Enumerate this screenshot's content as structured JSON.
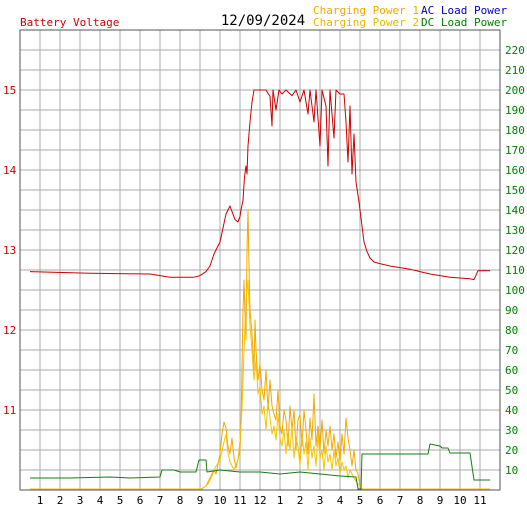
{
  "header": {
    "left_title": "Battery Voltage",
    "date": "12/09/2024",
    "legend": [
      {
        "label": "Charging Power 1",
        "color": "#f2a900"
      },
      {
        "label": "Charging Power 2",
        "color": "#e6b800"
      },
      {
        "label": "AC Load Power",
        "color": "#0000cc"
      },
      {
        "label": "DC Load Power",
        "color": "#008000"
      }
    ]
  },
  "colors": {
    "voltage": "#cc0000",
    "charging1": "#f2a900",
    "charging2": "#f5c400",
    "dc_load": "#1a7a1a",
    "right_axis": "#008000",
    "left_axis": "#cc0000",
    "grid": "#aaaaaa"
  },
  "chart_data": {
    "type": "line",
    "x_ticks": [
      "1",
      "2",
      "3",
      "4",
      "5",
      "6",
      "7",
      "8",
      "9",
      "10",
      "11",
      "12",
      "1",
      "2",
      "3",
      "4",
      "5",
      "6",
      "7",
      "8",
      "9",
      "10",
      "11"
    ],
    "left_axis": {
      "ticks": [
        "11",
        "12",
        "13",
        "14",
        "15"
      ],
      "range": [
        10.0,
        15.75
      ]
    },
    "right_axis": {
      "ticks": [
        "10",
        "20",
        "30",
        "40",
        "50",
        "60",
        "70",
        "80",
        "90",
        "100",
        "110",
        "120",
        "130",
        "140",
        "150",
        "160",
        "170",
        "180",
        "190",
        "200",
        "210",
        "220"
      ],
      "range": [
        0,
        230
      ]
    },
    "series": [
      {
        "key": "voltage",
        "axis": "left",
        "points": [
          [
            0,
            12.73
          ],
          [
            3,
            12.71
          ],
          [
            6,
            12.7
          ],
          [
            7,
            12.66
          ],
          [
            8.2,
            12.66
          ],
          [
            8.5,
            12.68
          ],
          [
            8.8,
            12.73
          ],
          [
            9.0,
            12.8
          ],
          [
            9.2,
            12.95
          ],
          [
            9.5,
            13.1
          ],
          [
            9.8,
            13.45
          ],
          [
            10.0,
            13.55
          ],
          [
            10.1,
            13.48
          ],
          [
            10.25,
            13.38
          ],
          [
            10.4,
            13.35
          ],
          [
            10.5,
            13.42
          ],
          [
            10.55,
            13.5
          ],
          [
            10.65,
            13.62
          ],
          [
            10.72,
            13.9
          ],
          [
            10.8,
            14.05
          ],
          [
            10.85,
            13.95
          ],
          [
            10.9,
            14.3
          ],
          [
            11.0,
            14.6
          ],
          [
            11.1,
            14.85
          ],
          [
            11.2,
            15.0
          ],
          [
            11.6,
            15.0
          ],
          [
            11.8,
            15.0
          ],
          [
            12.0,
            14.92
          ],
          [
            12.1,
            14.55
          ],
          [
            12.15,
            15.0
          ],
          [
            12.3,
            14.75
          ],
          [
            12.45,
            15.0
          ],
          [
            12.6,
            14.95
          ],
          [
            12.8,
            15.0
          ],
          [
            13.1,
            14.93
          ],
          [
            13.3,
            15.0
          ],
          [
            13.5,
            14.85
          ],
          [
            13.7,
            15.0
          ],
          [
            13.9,
            14.7
          ],
          [
            14.0,
            15.0
          ],
          [
            14.2,
            14.6
          ],
          [
            14.3,
            15.0
          ],
          [
            14.5,
            14.3
          ],
          [
            14.6,
            15.0
          ],
          [
            14.8,
            14.8
          ],
          [
            14.9,
            14.05
          ],
          [
            15.0,
            15.0
          ],
          [
            15.2,
            14.4
          ],
          [
            15.3,
            15.0
          ],
          [
            15.5,
            14.95
          ],
          [
            15.7,
            14.95
          ],
          [
            15.8,
            14.6
          ],
          [
            15.9,
            14.1
          ],
          [
            16.0,
            14.8
          ],
          [
            16.1,
            13.95
          ],
          [
            16.2,
            14.45
          ],
          [
            16.3,
            13.85
          ],
          [
            16.45,
            13.6
          ],
          [
            16.6,
            13.3
          ],
          [
            16.7,
            13.1
          ],
          [
            16.85,
            12.98
          ],
          [
            17.0,
            12.9
          ],
          [
            17.2,
            12.85
          ],
          [
            17.5,
            12.83
          ],
          [
            18.0,
            12.8
          ],
          [
            18.5,
            12.78
          ],
          [
            19.0,
            12.76
          ],
          [
            19.5,
            12.73
          ],
          [
            20.0,
            12.7
          ],
          [
            20.5,
            12.68
          ],
          [
            21.0,
            12.66
          ],
          [
            21.5,
            12.65
          ],
          [
            22.0,
            12.64
          ],
          [
            22.2,
            12.63
          ],
          [
            22.4,
            12.74
          ],
          [
            23,
            12.74
          ]
        ]
      },
      {
        "key": "charging1",
        "axis": "right",
        "points": [
          [
            0,
            0
          ],
          [
            8.55,
            0
          ],
          [
            8.8,
            2
          ],
          [
            9.0,
            6
          ],
          [
            9.2,
            10
          ],
          [
            9.3,
            8
          ],
          [
            9.5,
            18
          ],
          [
            9.6,
            28
          ],
          [
            9.7,
            34
          ],
          [
            9.8,
            31
          ],
          [
            9.9,
            22
          ],
          [
            10.0,
            18
          ],
          [
            10.1,
            26
          ],
          [
            10.2,
            16
          ],
          [
            10.3,
            11
          ],
          [
            10.5,
            20
          ],
          [
            10.55,
            32
          ],
          [
            10.6,
            60
          ],
          [
            10.65,
            90
          ],
          [
            10.7,
            105
          ],
          [
            10.75,
            88
          ],
          [
            10.8,
            75
          ],
          [
            10.85,
            120
          ],
          [
            10.9,
            140
          ],
          [
            10.95,
            112
          ],
          [
            11.0,
            90
          ],
          [
            11.1,
            78
          ],
          [
            11.2,
            60
          ],
          [
            11.25,
            85
          ],
          [
            11.3,
            70
          ],
          [
            11.4,
            55
          ],
          [
            11.5,
            63
          ],
          [
            11.6,
            50
          ],
          [
            11.7,
            45
          ],
          [
            11.8,
            60
          ],
          [
            11.9,
            40
          ],
          [
            12.0,
            55
          ],
          [
            12.1,
            42
          ],
          [
            12.2,
            38
          ],
          [
            12.3,
            35
          ],
          [
            12.4,
            50
          ],
          [
            12.5,
            32
          ],
          [
            12.6,
            28
          ],
          [
            12.7,
            40
          ],
          [
            12.8,
            35
          ],
          [
            12.9,
            22
          ],
          [
            13.0,
            42
          ],
          [
            13.1,
            30
          ],
          [
            13.2,
            40
          ],
          [
            13.3,
            20
          ],
          [
            13.4,
            35
          ],
          [
            13.5,
            38
          ],
          [
            13.6,
            22
          ],
          [
            13.7,
            40
          ],
          [
            13.8,
            30
          ],
          [
            13.9,
            18
          ],
          [
            14.0,
            36
          ],
          [
            14.1,
            25
          ],
          [
            14.2,
            48
          ],
          [
            14.3,
            22
          ],
          [
            14.4,
            32
          ],
          [
            14.5,
            20
          ],
          [
            14.6,
            35
          ],
          [
            14.7,
            18
          ],
          [
            14.8,
            30
          ],
          [
            14.9,
            22
          ],
          [
            15.0,
            32
          ],
          [
            15.1,
            20
          ],
          [
            15.2,
            28
          ],
          [
            15.3,
            16
          ],
          [
            15.4,
            24
          ],
          [
            15.5,
            14
          ],
          [
            15.6,
            28
          ],
          [
            15.7,
            18
          ],
          [
            15.8,
            36
          ],
          [
            15.9,
            26
          ],
          [
            16.0,
            20
          ],
          [
            16.1,
            12
          ],
          [
            16.2,
            20
          ],
          [
            16.3,
            10
          ],
          [
            16.4,
            8
          ],
          [
            16.5,
            2
          ],
          [
            16.6,
            0
          ],
          [
            23,
            0
          ]
        ]
      },
      {
        "key": "charging2",
        "axis": "right",
        "points": [
          [
            0,
            0
          ],
          [
            8.6,
            0
          ],
          [
            8.9,
            3
          ],
          [
            9.1,
            7
          ],
          [
            9.3,
            12
          ],
          [
            9.5,
            15
          ],
          [
            9.7,
            24
          ],
          [
            9.8,
            28
          ],
          [
            9.9,
            18
          ],
          [
            10.0,
            14
          ],
          [
            10.2,
            10
          ],
          [
            10.4,
            15
          ],
          [
            10.5,
            25
          ],
          [
            10.6,
            40
          ],
          [
            10.7,
            70
          ],
          [
            10.8,
            95
          ],
          [
            10.9,
            105
          ],
          [
            11.0,
            82
          ],
          [
            11.1,
            70
          ],
          [
            11.2,
            55
          ],
          [
            11.3,
            65
          ],
          [
            11.4,
            48
          ],
          [
            11.5,
            52
          ],
          [
            11.6,
            38
          ],
          [
            11.7,
            42
          ],
          [
            11.8,
            30
          ],
          [
            11.9,
            44
          ],
          [
            12.0,
            36
          ],
          [
            12.1,
            28
          ],
          [
            12.2,
            32
          ],
          [
            12.3,
            25
          ],
          [
            12.4,
            38
          ],
          [
            12.5,
            26
          ],
          [
            12.6,
            22
          ],
          [
            12.7,
            30
          ],
          [
            12.8,
            18
          ],
          [
            12.9,
            28
          ],
          [
            13.0,
            20
          ],
          [
            13.1,
            32
          ],
          [
            13.2,
            16
          ],
          [
            13.3,
            26
          ],
          [
            13.4,
            22
          ],
          [
            13.5,
            12
          ],
          [
            13.6,
            28
          ],
          [
            13.7,
            18
          ],
          [
            13.8,
            24
          ],
          [
            13.9,
            10
          ],
          [
            14.0,
            26
          ],
          [
            14.1,
            16
          ],
          [
            14.2,
            22
          ],
          [
            14.3,
            12
          ],
          [
            14.4,
            28
          ],
          [
            14.5,
            16
          ],
          [
            14.6,
            20
          ],
          [
            14.7,
            10
          ],
          [
            14.8,
            22
          ],
          [
            14.9,
            14
          ],
          [
            15.0,
            18
          ],
          [
            15.1,
            10
          ],
          [
            15.2,
            20
          ],
          [
            15.3,
            12
          ],
          [
            15.4,
            16
          ],
          [
            15.5,
            8
          ],
          [
            15.6,
            14
          ],
          [
            15.7,
            10
          ],
          [
            15.8,
            12
          ],
          [
            15.9,
            6
          ],
          [
            16.0,
            10
          ],
          [
            16.2,
            6
          ],
          [
            16.4,
            3
          ],
          [
            16.6,
            0
          ],
          [
            23,
            0
          ]
        ]
      },
      {
        "key": "dc_load",
        "axis": "right",
        "points": [
          [
            0,
            6
          ],
          [
            2,
            6
          ],
          [
            4,
            6.5
          ],
          [
            5,
            6
          ],
          [
            6.5,
            6.5
          ],
          [
            6.6,
            10
          ],
          [
            7.2,
            10
          ],
          [
            7.5,
            9
          ],
          [
            8.3,
            9
          ],
          [
            8.45,
            15
          ],
          [
            8.8,
            15
          ],
          [
            8.85,
            9
          ],
          [
            9.5,
            10
          ],
          [
            10.5,
            9
          ],
          [
            11.5,
            9
          ],
          [
            12.5,
            8
          ],
          [
            13.5,
            9
          ],
          [
            14.5,
            8
          ],
          [
            15.5,
            7
          ],
          [
            16.3,
            6.5
          ],
          [
            16.4,
            0
          ],
          [
            16.55,
            0
          ],
          [
            16.6,
            18
          ],
          [
            19.9,
            18
          ],
          [
            20.0,
            23
          ],
          [
            20.5,
            22
          ],
          [
            20.6,
            21
          ],
          [
            20.9,
            21
          ],
          [
            21.0,
            18.5
          ],
          [
            22.0,
            18.5
          ],
          [
            22.2,
            5
          ],
          [
            23,
            5
          ]
        ]
      }
    ]
  }
}
